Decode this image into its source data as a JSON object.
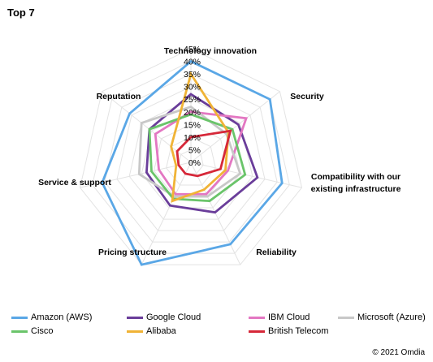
{
  "title": "Top 7",
  "copyright": "© 2021 Omdia",
  "chart_data": {
    "type": "radar",
    "axes": [
      "Technology innovation",
      "Security",
      "Compatibility with our existing infrastructure",
      "Reliability",
      "Pricing structure",
      "Service & support",
      "Reputation"
    ],
    "ticks": [
      "0%",
      "5%",
      "10%",
      "15%",
      "20%",
      "25%",
      "30%",
      "35%",
      "40%",
      "45%"
    ],
    "rmax": 45,
    "series": [
      {
        "name": "Amazon (AWS)",
        "color": "#5aa7e6",
        "values": [
          40,
          40,
          37,
          36,
          45,
          36,
          31
        ]
      },
      {
        "name": "Google Cloud",
        "color": "#6a3d9a",
        "values": [
          27,
          24,
          27,
          22,
          19,
          18,
          21
        ]
      },
      {
        "name": "IBM Cloud",
        "color": "#e377c2",
        "values": [
          20,
          28,
          15,
          14,
          14,
          13,
          18
        ]
      },
      {
        "name": "Microsoft (Azure)",
        "color": "#c8c8c8",
        "values": [
          22,
          18,
          20,
          15,
          15,
          21,
          25
        ]
      },
      {
        "name": "Cisco",
        "color": "#6ac46a",
        "values": [
          19,
          21,
          22,
          17,
          16,
          16,
          21
        ]
      },
      {
        "name": "Alibaba",
        "color": "#f0b336",
        "values": [
          35,
          19,
          14,
          12,
          17,
          6,
          10
        ]
      },
      {
        "name": "British Telecom",
        "color": "#d62839",
        "values": [
          10,
          20,
          12,
          6,
          5,
          5,
          7
        ]
      }
    ]
  }
}
